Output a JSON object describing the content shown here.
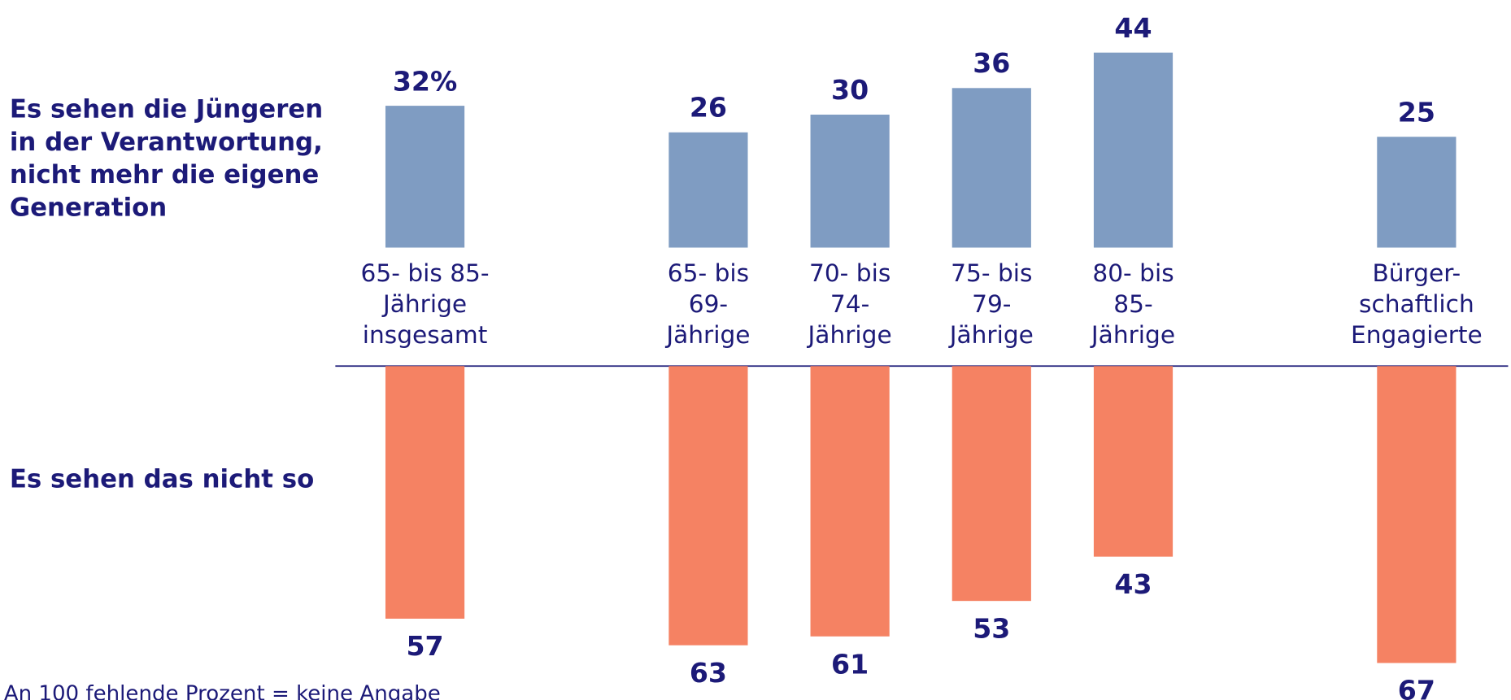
{
  "chart_data": {
    "type": "bar",
    "categories": [
      "65- bis 85-\nJährige\ninsgesamt",
      null,
      "65- bis\n69-\nJährige",
      "70- bis\n74-\nJährige",
      "75- bis\n79-\nJährige",
      "80- bis\n85-\nJährige",
      null,
      "Bürger-\nschaftlich\nEngagierte"
    ],
    "series": [
      {
        "name": "Es sehen die Jüngeren\nin der Verantwortung,\nnicht mehr die eigene\nGeneration",
        "color": "#7f9cc2",
        "values": [
          32,
          null,
          26,
          30,
          36,
          44,
          null,
          25
        ],
        "value_labels": [
          "32%",
          null,
          "26",
          "30",
          "36",
          "44",
          null,
          "25"
        ]
      },
      {
        "name": "Es sehen das nicht so",
        "color": "#f58263",
        "values": [
          57,
          null,
          63,
          61,
          53,
          43,
          null,
          67
        ],
        "value_labels": [
          "57",
          null,
          "63",
          "61",
          "53",
          "43",
          null,
          "67"
        ]
      }
    ],
    "footnote": "An 100 fehlende Prozent = keine Angabe"
  }
}
